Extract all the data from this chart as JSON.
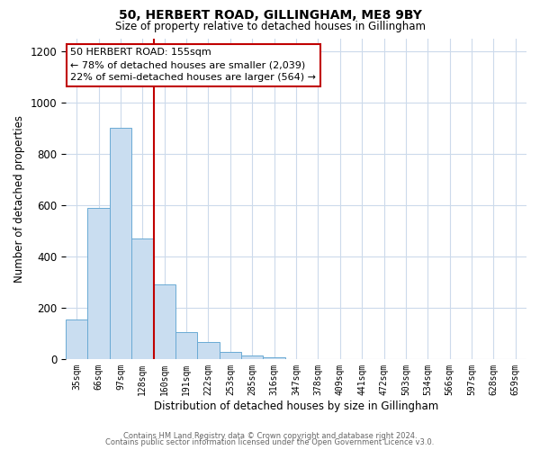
{
  "title": "50, HERBERT ROAD, GILLINGHAM, ME8 9BY",
  "subtitle": "Size of property relative to detached houses in Gillingham",
  "xlabel": "Distribution of detached houses by size in Gillingham",
  "ylabel": "Number of detached properties",
  "bar_labels": [
    "35sqm",
    "66sqm",
    "97sqm",
    "128sqm",
    "160sqm",
    "191sqm",
    "222sqm",
    "253sqm",
    "285sqm",
    "316sqm",
    "347sqm",
    "378sqm",
    "409sqm",
    "441sqm",
    "472sqm",
    "503sqm",
    "534sqm",
    "566sqm",
    "597sqm",
    "628sqm",
    "659sqm"
  ],
  "bar_values": [
    155,
    590,
    900,
    470,
    290,
    105,
    65,
    28,
    12,
    5,
    0,
    0,
    0,
    0,
    0,
    0,
    0,
    0,
    0,
    0,
    0
  ],
  "bar_color": "#c9ddf0",
  "bar_edge_color": "#6aaad4",
  "ref_bar_index": 4,
  "annotation_title": "50 HERBERT ROAD: 155sqm",
  "annotation_line1": "← 78% of detached houses are smaller (2,039)",
  "annotation_line2": "22% of semi-detached houses are larger (564) →",
  "annotation_box_edge_color": "#c00000",
  "vline_color": "#c00000",
  "ylim": [
    0,
    1250
  ],
  "yticks": [
    0,
    200,
    400,
    600,
    800,
    1000,
    1200
  ],
  "footer_line1": "Contains HM Land Registry data © Crown copyright and database right 2024.",
  "footer_line2": "Contains public sector information licensed under the Open Government Licence v3.0.",
  "background_color": "#ffffff",
  "grid_color": "#ccdaeb"
}
